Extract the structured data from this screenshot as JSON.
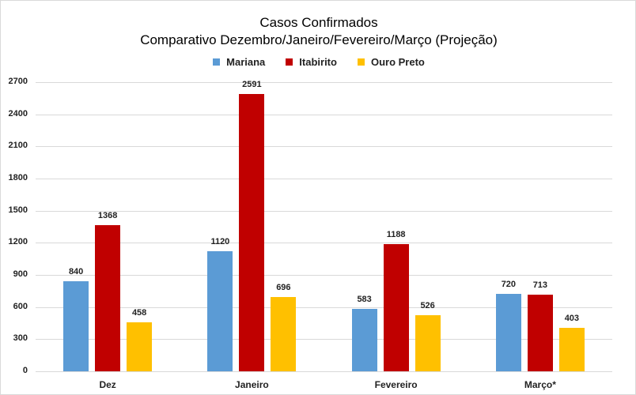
{
  "chart_data": {
    "type": "bar",
    "title": "Casos Confirmados",
    "subtitle": "Comparativo Dezembro/Janeiro/Fevereiro/Março (Projeção)",
    "categories": [
      "Dez",
      "Janeiro",
      "Fevereiro",
      "Março*"
    ],
    "series": [
      {
        "name": "Mariana",
        "color": "#5b9bd5",
        "values": [
          840,
          1120,
          583,
          720
        ]
      },
      {
        "name": "Itabirito",
        "color": "#c00000",
        "values": [
          1368,
          2591,
          1188,
          713
        ]
      },
      {
        "name": "Ouro Preto",
        "color": "#ffc000",
        "values": [
          458,
          696,
          526,
          403
        ]
      }
    ],
    "xlabel": "",
    "ylabel": "",
    "ylim": [
      0,
      2700
    ],
    "yticks": [
      0,
      300,
      600,
      900,
      1200,
      1500,
      1800,
      2100,
      2400,
      2700
    ],
    "grid": true,
    "legend_position": "top",
    "data_labels": true
  }
}
